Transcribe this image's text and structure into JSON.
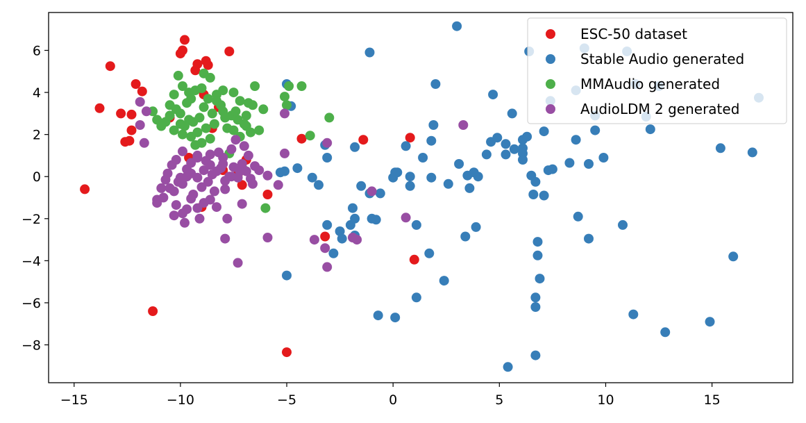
{
  "chart_data": {
    "type": "scatter",
    "title": "",
    "xlabel": "",
    "ylabel": "",
    "xlim": [
      -16.2,
      18.8
    ],
    "ylim": [
      -9.8,
      7.8
    ],
    "xticks": [
      -15,
      -10,
      -5,
      0,
      5,
      10,
      15
    ],
    "yticks": [
      -8,
      -6,
      -4,
      -2,
      0,
      2,
      4,
      6
    ],
    "xtick_labels": [
      "−15",
      "−10",
      "−5",
      "0",
      "5",
      "10",
      "15"
    ],
    "ytick_labels": [
      "−8",
      "−6",
      "−4",
      "−2",
      "0",
      "2",
      "4",
      "6"
    ],
    "grid": false,
    "legend_position": "top-right",
    "series": [
      {
        "name": "ESC-50 dataset",
        "color": "#e41a1c",
        "points": [
          [
            -14.5,
            -0.6
          ],
          [
            -13.8,
            3.25
          ],
          [
            -13.3,
            5.25
          ],
          [
            -12.8,
            3.0
          ],
          [
            -12.6,
            1.65
          ],
          [
            -12.4,
            1.7
          ],
          [
            -12.3,
            2.2
          ],
          [
            -12.3,
            2.95
          ],
          [
            -12.1,
            4.4
          ],
          [
            -11.8,
            4.05
          ],
          [
            -11.3,
            -6.4
          ],
          [
            -9.8,
            6.5
          ],
          [
            -9.9,
            6.0
          ],
          [
            -10.0,
            5.85
          ],
          [
            -9.3,
            5.05
          ],
          [
            -9.2,
            5.35
          ],
          [
            -8.8,
            5.5
          ],
          [
            -8.7,
            5.3
          ],
          [
            -7.7,
            5.95
          ],
          [
            -10.5,
            2.8
          ],
          [
            -9.6,
            0.9
          ],
          [
            -8.9,
            3.9
          ],
          [
            -8.2,
            3.3
          ],
          [
            -8.5,
            2.3
          ],
          [
            -8.0,
            0.3
          ],
          [
            -7.3,
            0.1
          ],
          [
            -7.1,
            -0.4
          ],
          [
            -6.9,
            0.8
          ],
          [
            -5.9,
            -0.85
          ],
          [
            -9.0,
            -1.45
          ],
          [
            -4.3,
            1.8
          ],
          [
            -5.0,
            -8.35
          ],
          [
            -3.2,
            -2.85
          ],
          [
            -1.4,
            1.75
          ],
          [
            0.8,
            1.85
          ],
          [
            1.0,
            -3.95
          ]
        ]
      },
      {
        "name": "Stable Audio generated",
        "color": "#377eb8",
        "points": [
          [
            -1.1,
            5.9
          ],
          [
            2.0,
            4.4
          ],
          [
            3.0,
            7.15
          ],
          [
            4.7,
            3.9
          ],
          [
            5.6,
            3.0
          ],
          [
            6.4,
            5.95
          ],
          [
            9.0,
            6.1
          ],
          [
            11.0,
            5.95
          ],
          [
            11.4,
            4.4
          ],
          [
            12.5,
            4.3
          ],
          [
            8.6,
            4.1
          ],
          [
            7.4,
            3.6
          ],
          [
            9.5,
            2.9
          ],
          [
            9.5,
            2.2
          ],
          [
            11.9,
            2.85
          ],
          [
            12.1,
            2.25
          ],
          [
            15.4,
            1.35
          ],
          [
            16.9,
            1.15
          ],
          [
            17.2,
            3.75
          ],
          [
            1.9,
            2.45
          ],
          [
            1.8,
            1.7
          ],
          [
            0.6,
            1.45
          ],
          [
            1.4,
            0.9
          ],
          [
            -1.8,
            1.4
          ],
          [
            -3.2,
            1.5
          ],
          [
            -3.1,
            0.9
          ],
          [
            -5.0,
            4.4
          ],
          [
            -4.8,
            3.35
          ],
          [
            -5.3,
            0.2
          ],
          [
            -5.1,
            0.25
          ],
          [
            -4.5,
            0.4
          ],
          [
            -3.8,
            -0.05
          ],
          [
            -3.5,
            -0.4
          ],
          [
            -1.5,
            -0.45
          ],
          [
            -1.1,
            -0.8
          ],
          [
            -0.6,
            -0.8
          ],
          [
            0.0,
            -0.05
          ],
          [
            0.2,
            0.2
          ],
          [
            0.1,
            0.2
          ],
          [
            0.8,
            0.0
          ],
          [
            0.8,
            -0.45
          ],
          [
            1.8,
            -0.05
          ],
          [
            2.6,
            -0.35
          ],
          [
            3.1,
            0.6
          ],
          [
            3.5,
            0.05
          ],
          [
            3.8,
            0.2
          ],
          [
            4.0,
            0.0
          ],
          [
            3.6,
            -0.55
          ],
          [
            4.4,
            1.05
          ],
          [
            4.6,
            1.65
          ],
          [
            4.9,
            1.85
          ],
          [
            5.3,
            1.05
          ],
          [
            5.3,
            1.55
          ],
          [
            5.7,
            1.3
          ],
          [
            6.1,
            1.75
          ],
          [
            6.1,
            1.35
          ],
          [
            6.1,
            1.1
          ],
          [
            6.1,
            0.8
          ],
          [
            6.3,
            1.9
          ],
          [
            6.5,
            0.05
          ],
          [
            6.7,
            -0.25
          ],
          [
            6.6,
            -0.85
          ],
          [
            7.1,
            -0.9
          ],
          [
            7.1,
            2.15
          ],
          [
            7.3,
            0.3
          ],
          [
            7.5,
            0.35
          ],
          [
            8.3,
            0.65
          ],
          [
            8.6,
            1.75
          ],
          [
            9.2,
            0.6
          ],
          [
            9.9,
            0.9
          ],
          [
            8.7,
            -1.9
          ],
          [
            9.2,
            -2.95
          ],
          [
            10.8,
            -2.3
          ],
          [
            -2.0,
            -2.3
          ],
          [
            -1.8,
            -2.0
          ],
          [
            -1.0,
            -2.0
          ],
          [
            -0.8,
            -2.05
          ],
          [
            -1.9,
            -1.5
          ],
          [
            -3.1,
            -2.3
          ],
          [
            -2.5,
            -2.6
          ],
          [
            -2.4,
            -2.95
          ],
          [
            -1.8,
            -2.8
          ],
          [
            -2.8,
            -3.65
          ],
          [
            1.1,
            -2.3
          ],
          [
            1.7,
            -3.65
          ],
          [
            3.4,
            -2.85
          ],
          [
            3.9,
            -2.4
          ],
          [
            2.4,
            -4.95
          ],
          [
            1.1,
            -5.75
          ],
          [
            -0.7,
            -6.6
          ],
          [
            0.1,
            -6.7
          ],
          [
            -5.0,
            -4.7
          ],
          [
            6.8,
            -3.1
          ],
          [
            6.8,
            -3.75
          ],
          [
            6.9,
            -4.85
          ],
          [
            6.7,
            -5.75
          ],
          [
            6.7,
            -6.2
          ],
          [
            6.7,
            -8.5
          ],
          [
            5.4,
            -9.05
          ],
          [
            11.3,
            -6.55
          ],
          [
            12.8,
            -7.4
          ],
          [
            14.9,
            -6.9
          ],
          [
            16.0,
            -3.8
          ]
        ]
      },
      {
        "name": "MMAudio generated",
        "color": "#4daf4a",
        "points": [
          [
            -10.5,
            3.4
          ],
          [
            -10.3,
            3.9
          ],
          [
            -10.1,
            4.8
          ],
          [
            -9.9,
            4.3
          ],
          [
            -9.5,
            3.7
          ],
          [
            -9.3,
            4.1
          ],
          [
            -9.0,
            4.2
          ],
          [
            -8.9,
            4.9
          ],
          [
            -8.6,
            4.7
          ],
          [
            -8.3,
            3.9
          ],
          [
            -8.0,
            4.1
          ],
          [
            -7.5,
            4.0
          ],
          [
            -7.2,
            3.6
          ],
          [
            -6.8,
            3.5
          ],
          [
            -6.5,
            4.3
          ],
          [
            -6.1,
            3.2
          ],
          [
            -6.6,
            3.4
          ],
          [
            -6.9,
            2.4
          ],
          [
            -7.3,
            2.7
          ],
          [
            -7.6,
            2.9
          ],
          [
            -8.0,
            3.1
          ],
          [
            -8.4,
            2.5
          ],
          [
            -8.8,
            2.3
          ],
          [
            -9.2,
            2.1
          ],
          [
            -9.6,
            2.7
          ],
          [
            -10.0,
            3.0
          ],
          [
            -10.7,
            2.6
          ],
          [
            -10.9,
            2.4
          ],
          [
            -10.3,
            2.2
          ],
          [
            -9.9,
            2.0
          ],
          [
            -9.5,
            1.9
          ],
          [
            -9.0,
            1.6
          ],
          [
            -9.3,
            1.5
          ],
          [
            -8.6,
            1.8
          ],
          [
            -7.8,
            2.3
          ],
          [
            -7.0,
            2.5
          ],
          [
            -6.7,
            2.1
          ],
          [
            -6.3,
            2.2
          ],
          [
            -7.4,
            3.1
          ],
          [
            -8.1,
            3.4
          ],
          [
            -8.7,
            3.7
          ],
          [
            -9.1,
            2.8
          ],
          [
            -9.7,
            3.5
          ],
          [
            -10.2,
            3.2
          ],
          [
            -11.1,
            2.7
          ],
          [
            -11.3,
            3.1
          ],
          [
            -8.5,
            3.0
          ],
          [
            -7.9,
            2.8
          ],
          [
            -7.2,
            1.9
          ],
          [
            -9.4,
            2.6
          ],
          [
            -8.9,
            3.3
          ],
          [
            -9.8,
            2.4
          ],
          [
            -10.5,
            2.9
          ],
          [
            -7.7,
            1.1
          ],
          [
            -7.0,
            0.3
          ],
          [
            -5.1,
            3.8
          ],
          [
            -5.0,
            3.4
          ],
          [
            -4.9,
            4.3
          ],
          [
            -4.3,
            4.3
          ],
          [
            -3.9,
            1.95
          ],
          [
            -3.0,
            2.8
          ],
          [
            -6.0,
            -1.5
          ],
          [
            -8.3,
            3.6
          ],
          [
            -7.5,
            2.2
          ],
          [
            -6.9,
            2.9
          ],
          [
            -9.6,
            4.0
          ],
          [
            -10.0,
            2.5
          ]
        ]
      },
      {
        "name": "AudioLDM 2 generated",
        "color": "#984ea3",
        "points": [
          [
            -11.9,
            3.55
          ],
          [
            -11.6,
            3.1
          ],
          [
            -11.9,
            2.45
          ],
          [
            -11.7,
            1.6
          ],
          [
            -11.1,
            -1.1
          ],
          [
            -11.1,
            -1.25
          ],
          [
            -10.9,
            -0.55
          ],
          [
            -10.7,
            -0.15
          ],
          [
            -10.5,
            -0.55
          ],
          [
            -10.3,
            -0.7
          ],
          [
            -10.1,
            -0.25
          ],
          [
            -9.9,
            -0.35
          ],
          [
            -9.7,
            0.0
          ],
          [
            -9.5,
            0.15
          ],
          [
            -9.2,
            -0.05
          ],
          [
            -9.0,
            -0.5
          ],
          [
            -8.7,
            -0.25
          ],
          [
            -8.5,
            0.1
          ],
          [
            -8.3,
            0.25
          ],
          [
            -8.1,
            0.4
          ],
          [
            -7.9,
            -0.2
          ],
          [
            -7.7,
            0.0
          ],
          [
            -7.5,
            0.45
          ],
          [
            -7.3,
            -0.05
          ],
          [
            -7.1,
            0.6
          ],
          [
            -6.9,
            0.25
          ],
          [
            -6.6,
            -0.35
          ],
          [
            -6.3,
            0.3
          ],
          [
            -5.9,
            0.05
          ],
          [
            -5.4,
            -0.4
          ],
          [
            -10.8,
            -1.0
          ],
          [
            -10.2,
            -1.35
          ],
          [
            -9.9,
            -1.75
          ],
          [
            -9.7,
            -1.55
          ],
          [
            -9.5,
            -1.05
          ],
          [
            -9.2,
            -1.5
          ],
          [
            -8.9,
            -1.25
          ],
          [
            -8.6,
            -1.1
          ],
          [
            -8.3,
            -1.45
          ],
          [
            -7.9,
            -0.6
          ],
          [
            -7.8,
            -2.0
          ],
          [
            -7.9,
            -2.95
          ],
          [
            -7.3,
            -4.1
          ],
          [
            -7.1,
            -1.3
          ],
          [
            -9.8,
            -2.2
          ],
          [
            -9.1,
            -2.0
          ],
          [
            -10.3,
            -1.85
          ],
          [
            -9.9,
            1.2
          ],
          [
            -9.5,
            0.65
          ],
          [
            -9.2,
            0.9
          ],
          [
            -8.8,
            0.75
          ],
          [
            -8.6,
            1.05
          ],
          [
            -8.2,
            1.15
          ],
          [
            -8.0,
            0.9
          ],
          [
            -7.6,
            1.3
          ],
          [
            -7.4,
            1.75
          ],
          [
            -7.0,
            1.45
          ],
          [
            -6.8,
            1.0
          ],
          [
            -6.5,
            0.5
          ],
          [
            -10.4,
            0.55
          ],
          [
            -10.6,
            0.15
          ],
          [
            -9.7,
            0.35
          ],
          [
            -8.9,
            0.3
          ],
          [
            -8.4,
            -0.7
          ],
          [
            -9.4,
            -0.85
          ],
          [
            -10.0,
            -0.05
          ],
          [
            -8.0,
            0.6
          ],
          [
            -7.6,
            0.0
          ],
          [
            -7.2,
            0.25
          ],
          [
            -6.7,
            -0.1
          ],
          [
            -5.9,
            -2.9
          ],
          [
            -5.1,
            1.1
          ],
          [
            -5.1,
            3.0
          ],
          [
            -3.7,
            -3.0
          ],
          [
            -3.1,
            1.6
          ],
          [
            -3.2,
            -3.4
          ],
          [
            -3.1,
            -4.3
          ],
          [
            -1.9,
            -2.9
          ],
          [
            -1.7,
            -3.0
          ],
          [
            -1.0,
            -0.7
          ],
          [
            0.6,
            -1.95
          ],
          [
            3.3,
            2.45
          ],
          [
            -9.2,
            1.0
          ],
          [
            -10.2,
            0.8
          ],
          [
            -8.6,
            0.55
          ]
        ]
      }
    ]
  }
}
